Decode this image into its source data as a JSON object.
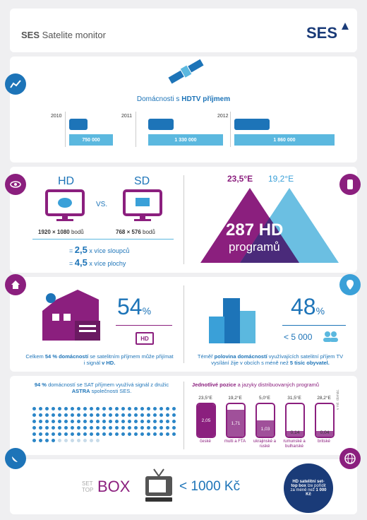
{
  "header": {
    "brand": "SES",
    "title": "Satelite monitor",
    "logo": "SES"
  },
  "hdtv": {
    "title_prefix": "Domácnosti s ",
    "title_bold": "HDTV příjmem",
    "years": [
      {
        "year": "2010",
        "value": "750 000"
      },
      {
        "year": "2011",
        "value": "1 330 000"
      },
      {
        "year": "2012",
        "value": "1 860 000"
      }
    ]
  },
  "hd_vs_sd": {
    "hd_label": "HD",
    "vs": "VS.",
    "sd_label": "SD",
    "hd_res": "1920 × 1080",
    "hd_res_unit": " bodů",
    "sd_res": "768 × 576",
    "sd_res_unit": " bodů",
    "row1_eq": "=",
    "row1_val": "2,5",
    "row1_text": " x více sloupců",
    "row2_eq": "=",
    "row2_val": "4,5",
    "row2_text": " x více plochy"
  },
  "programs": {
    "pos1": "23,5°E",
    "pos2": "19,2°E",
    "count": "287",
    "hd": "HD",
    "label": "programů"
  },
  "household": {
    "pct": "54",
    "pct_sign": "%",
    "hd_badge": "HD",
    "text_a": "Celkem ",
    "text_b": "54 % domácností",
    "text_c": " se satelitním příjmem může přijímat i signál ",
    "text_d": "v HD."
  },
  "cities": {
    "pct": "48",
    "pct_sign": "%",
    "less": "< 5 000",
    "text_a": "Téměř ",
    "text_b": "polovina domácností",
    "text_c": " využívajících satelitní příjem TV vysílání žije v obcích s méně než ",
    "text_d": "5 tisíc obyvatel."
  },
  "astra": {
    "text_a": "94 %",
    "text_b": " domácností se SAT příjmem využívá signál z družic ",
    "text_c": "ASTRA",
    "text_d": " společnosti SES."
  },
  "positions": {
    "title_a": "Jednotlivé pozice",
    "title_b": " a jazyky distribuovaných programů",
    "unit_note": "v mil. domác.",
    "items": [
      {
        "pos": "23,5°E",
        "value": "2,05",
        "lang": "české"
      },
      {
        "pos": "19,2°E",
        "value": "1,71",
        "lang": "multi a FTA"
      },
      {
        "pos": "5,0°E",
        "value": "1,03",
        "lang": "ukrajinské a ruské"
      },
      {
        "pos": "31,5°E",
        "value": "0,14",
        "lang": "rumunské a bulharské"
      },
      {
        "pos": "28,2°E",
        "value": "0,04",
        "lang": "britské"
      }
    ]
  },
  "settop": {
    "set": "SET",
    "top": "TOP",
    "box": "BOX",
    "price": "< 1000 Kč",
    "note_a": "HD satelitní set-top box",
    "note_b": " lze pořídit za méně než ",
    "note_c": "1 000 Kč"
  },
  "colors": {
    "blue": "#1d74b8",
    "purple": "#8b1f7e",
    "light_blue": "#5bb8df",
    "bg": "#efeff1"
  }
}
